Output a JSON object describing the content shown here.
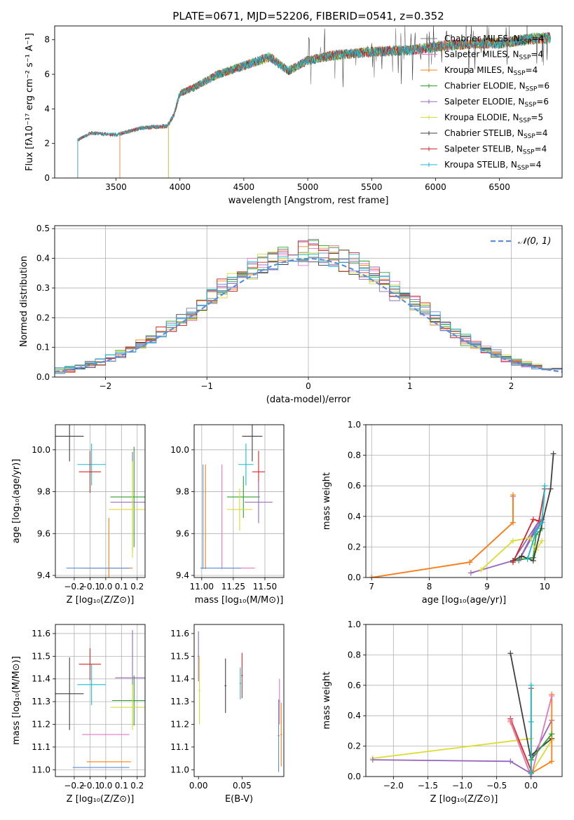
{
  "figure": {
    "title": "PLATE=0671, MJD=52206, FIBERID=0541, z=0.352"
  },
  "chart_data": [
    {
      "type": "line",
      "id": "spectrum",
      "xlabel": "wavelength [Angstrom, rest frame]",
      "ylabel": "Flux [fλ10⁻¹⁷ erg cm⁻² s⁻¹ A⁻¹]",
      "xlim": [
        3020,
        6990
      ],
      "ylim": [
        0,
        8.8
      ],
      "xticks": [
        3500,
        4000,
        4500,
        5000,
        5500,
        6000,
        6500
      ],
      "yticks": [
        0,
        2,
        4,
        6,
        8
      ],
      "grid": false,
      "legend_position": "top-right",
      "data_anchor_wavelength": [
        3200,
        3300,
        3500,
        3700,
        3900,
        3950,
        4000,
        4100,
        4300,
        4500,
        4700,
        4850,
        5000,
        5200,
        5500,
        5800,
        6000,
        6300,
        6500,
        6800
      ],
      "data_anchor_flux": [
        2.2,
        2.6,
        2.5,
        2.9,
        3.0,
        3.6,
        4.9,
        5.2,
        6.0,
        6.5,
        7.0,
        6.2,
        6.8,
        7.1,
        7.3,
        7.4,
        7.6,
        7.8,
        7.8,
        8.1
      ],
      "series": [
        {
          "name": "Chabrier MILES, N_SSP=4",
          "color": "#808080",
          "start": 3200
        },
        {
          "name": "Salpeter MILES, N_SSP=4",
          "color": "#e377c2",
          "start": 3530
        },
        {
          "name": "Kroupa MILES, N_SSP=4",
          "color": "#ff7f0e",
          "start": 3530
        },
        {
          "name": "Chabrier ELODIE, N_SSP=6",
          "color": "#2ca02c",
          "start": 3910
        },
        {
          "name": "Salpeter ELODIE, N_SSP=6",
          "color": "#9467bd",
          "start": 3910
        },
        {
          "name": "Kroupa ELODIE, N_SSP=5",
          "color": "#dbdb30",
          "start": 3910
        },
        {
          "name": "Chabrier STELIB, N_SSP=4",
          "color": "#404040",
          "start": 3200
        },
        {
          "name": "Salpeter STELIB, N_SSP=4",
          "color": "#d62728",
          "start": 3200
        },
        {
          "name": "Kroupa STELIB, N_SSP=4",
          "color": "#17becf",
          "start": 3200
        }
      ]
    },
    {
      "type": "line",
      "id": "residuals",
      "xlabel": "(data-model)/error",
      "ylabel": "Normed distribution",
      "xlim": [
        -2.5,
        2.5
      ],
      "ylim": [
        0,
        0.51
      ],
      "xticks": [
        -2,
        -1,
        0,
        1,
        2
      ],
      "yticks": [
        0.0,
        0.1,
        0.2,
        0.3,
        0.4,
        0.5
      ],
      "grid": true,
      "legend_position": "top-right",
      "reference_curve": {
        "name": "𝒩(0, 1)",
        "color": "#5b8fd9",
        "style": "dashed",
        "mean": 0,
        "sigma": 1
      },
      "bin_edges": [
        -2.5,
        -2.4,
        -2.3,
        -2.2,
        -2.1,
        -2.0,
        -1.9,
        -1.8,
        -1.7,
        -1.6,
        -1.5,
        -1.4,
        -1.3,
        -1.2,
        -1.1,
        -1.0,
        -0.9,
        -0.8,
        -0.7,
        -0.6,
        -0.5,
        -0.4,
        -0.3,
        -0.2,
        -0.1,
        0.0,
        0.1,
        0.2,
        0.3,
        0.4,
        0.5,
        0.6,
        0.7,
        0.8,
        0.9,
        1.0,
        1.1,
        1.2,
        1.3,
        1.4,
        1.5,
        1.6,
        1.7,
        1.8,
        1.9,
        2.0,
        2.1,
        2.2,
        2.3,
        2.4,
        2.5
      ],
      "series_colors": [
        "#808080",
        "#e377c2",
        "#ff7f0e",
        "#2ca02c",
        "#9467bd",
        "#dbdb30",
        "#404040",
        "#d62728",
        "#17becf",
        "#5b8fd9"
      ]
    },
    {
      "type": "scatter",
      "id": "age-vs-Z",
      "xlabel": "Z [log₁₀(Z/Z⊙)]",
      "ylabel": "age  [log₁₀(age/yr)]",
      "xlim": [
        -0.32,
        0.25
      ],
      "ylim": [
        9.39,
        10.12
      ],
      "xticks": [
        -0.2,
        -0.1,
        0.0,
        0.1,
        0.2
      ],
      "yticks": [
        9.4,
        9.6,
        9.8,
        10.0
      ],
      "grid": true,
      "points": [
        {
          "color": "#404040",
          "x": -0.23,
          "xerr": 0.09,
          "y": 10.065,
          "yerr": 0.12
        },
        {
          "color": "#17becf",
          "x": -0.09,
          "xerr": 0.09,
          "y": 9.93,
          "yerr": 0.1
        },
        {
          "color": "#d62728",
          "x": -0.1,
          "xerr": 0.07,
          "y": 9.895,
          "yerr": 0.1
        },
        {
          "color": "#2ca02c",
          "x": 0.18,
          "xerr": 0.15,
          "y": 9.775,
          "yerr": 0.24
        },
        {
          "color": "#9467bd",
          "x": 0.17,
          "xerr": 0.14,
          "y": 9.75,
          "yerr": 0.24
        },
        {
          "color": "#dbdb30",
          "x": 0.17,
          "xerr": 0.15,
          "y": 9.715,
          "yerr": 0.23
        },
        {
          "color": "#ff7f0e",
          "x": 0.02,
          "xerr": 0.15,
          "y": 9.435,
          "yerr": 0.24
        },
        {
          "color": "#e377c2",
          "x": 0.0,
          "xerr": 0.15,
          "y": 9.435,
          "yerr": 0.001
        },
        {
          "color": "#5b8fd9",
          "x": -0.05,
          "xerr": 0.2,
          "y": 9.435,
          "yerr": 0.001
        }
      ]
    },
    {
      "type": "scatter",
      "id": "age-vs-mass",
      "xlabel": "mass [log₁₀(M/M⊙)]",
      "ylabel": "",
      "xlim": [
        10.94,
        11.65
      ],
      "ylim": [
        9.39,
        10.12
      ],
      "xticks": [
        11.0,
        11.25,
        11.5
      ],
      "yticks": [
        9.4,
        9.6,
        9.8,
        10.0
      ],
      "grid": true,
      "points": [
        {
          "color": "#404040",
          "x": 11.4,
          "xerr": 0.08,
          "y": 10.065,
          "yerr": 0.12
        },
        {
          "color": "#17becf",
          "x": 11.35,
          "xerr": 0.06,
          "y": 9.93,
          "yerr": 0.1
        },
        {
          "color": "#d62728",
          "x": 11.45,
          "xerr": 0.05,
          "y": 9.895,
          "yerr": 0.1
        },
        {
          "color": "#2ca02c",
          "x": 11.33,
          "xerr": 0.13,
          "y": 9.775,
          "yerr": 0.1
        },
        {
          "color": "#9467bd",
          "x": 11.45,
          "xerr": 0.11,
          "y": 9.75,
          "yerr": 0.1
        },
        {
          "color": "#dbdb30",
          "x": 11.3,
          "xerr": 0.1,
          "y": 9.715,
          "yerr": 0.1
        },
        {
          "color": "#ff7f0e",
          "x": 11.03,
          "xerr": 0.001,
          "y": 9.68,
          "yerr": 0.25
        },
        {
          "color": "#e377c2",
          "x": 11.16,
          "xerr": 0.001,
          "y": 9.68,
          "yerr": 0.25
        },
        {
          "color": "#5b8fd9",
          "x": 11.01,
          "xerr": 0.001,
          "y": 9.68,
          "yerr": 0.25
        },
        {
          "color": "#e377c2",
          "x": 11.3,
          "xerr": 0.12,
          "y": 9.435,
          "yerr": 0.001
        },
        {
          "color": "#5b8fd9",
          "x": 11.15,
          "xerr": 0.16,
          "y": 9.435,
          "yerr": 0.001
        }
      ]
    },
    {
      "type": "line",
      "id": "weight-vs-age",
      "xlabel": "age  [log₁₀(age/yr)]",
      "ylabel": "mass weight",
      "xlim": [
        6.9,
        10.3
      ],
      "ylim": [
        0,
        1.0
      ],
      "xticks": [
        7,
        8,
        9,
        10
      ],
      "yticks": [
        0.0,
        0.2,
        0.4,
        0.6,
        0.8,
        1.0
      ],
      "grid": true,
      "series": [
        {
          "color": "#e377c2",
          "x": [
            7.0,
            8.7,
            9.45,
            9.45
          ],
          "y": [
            0.0,
            0.1,
            0.36,
            0.53
          ]
        },
        {
          "color": "#ff7f0e",
          "x": [
            7.0,
            8.7,
            9.45,
            9.45
          ],
          "y": [
            0.0,
            0.1,
            0.36,
            0.54
          ]
        },
        {
          "color": "#9467bd",
          "x": [
            8.72,
            9.45,
            9.9,
            9.55,
            9.95
          ],
          "y": [
            0.03,
            0.11,
            0.37,
            0.11,
            0.38
          ]
        },
        {
          "color": "#2ca02c",
          "x": [
            9.45,
            9.8,
            9.85,
            9.95
          ],
          "y": [
            0.11,
            0.13,
            0.28,
            0.32
          ]
        },
        {
          "color": "#dbdb30",
          "x": [
            8.9,
            9.45,
            9.75,
            9.85,
            9.95
          ],
          "y": [
            0.05,
            0.24,
            0.26,
            0.18,
            0.24
          ]
        },
        {
          "color": "#404040",
          "x": [
            9.45,
            9.6,
            9.8,
            10.1,
            10.15
          ],
          "y": [
            0.11,
            0.14,
            0.11,
            0.58,
            0.81
          ]
        },
        {
          "color": "#d62728",
          "x": [
            9.45,
            9.8,
            9.9,
            10.0
          ],
          "y": [
            0.1,
            0.38,
            0.37,
            0.58
          ]
        },
        {
          "color": "#17becf",
          "x": [
            9.7,
            9.85,
            9.95,
            10.0
          ],
          "y": [
            0.12,
            0.3,
            0.36,
            0.6
          ]
        }
      ]
    },
    {
      "type": "scatter",
      "id": "mass-vs-Z",
      "xlabel": "Z [log₁₀(Z/Z⊙)]",
      "ylabel": "mass [log₁₀(M/M⊙)]",
      "xlim": [
        -0.32,
        0.25
      ],
      "ylim": [
        10.97,
        11.64
      ],
      "xticks": [
        -0.2,
        -0.1,
        0.0,
        0.1,
        0.2
      ],
      "yticks": [
        11.0,
        11.1,
        11.2,
        11.3,
        11.4,
        11.5,
        11.6
      ],
      "grid": true,
      "points": [
        {
          "color": "#404040",
          "x": -0.23,
          "xerr": 0.09,
          "y": 11.335,
          "yerr": 0.16
        },
        {
          "color": "#d62728",
          "x": -0.1,
          "xerr": 0.07,
          "y": 11.465,
          "yerr": 0.07
        },
        {
          "color": "#17becf",
          "x": -0.09,
          "xerr": 0.09,
          "y": 11.375,
          "yerr": 0.09
        },
        {
          "color": "#9467bd",
          "x": 0.17,
          "xerr": 0.11,
          "y": 11.405,
          "yerr": 0.21
        },
        {
          "color": "#2ca02c",
          "x": 0.18,
          "xerr": 0.14,
          "y": 11.305,
          "yerr": 0.11
        },
        {
          "color": "#dbdb30",
          "x": 0.17,
          "xerr": 0.14,
          "y": 11.275,
          "yerr": 0.1
        },
        {
          "color": "#e377c2",
          "x": 0.0,
          "xerr": 0.15,
          "y": 11.155,
          "yerr": 0.001
        },
        {
          "color": "#ff7f0e",
          "x": 0.02,
          "xerr": 0.14,
          "y": 11.035,
          "yerr": 0.001
        },
        {
          "color": "#5b8fd9",
          "x": -0.03,
          "xerr": 0.18,
          "y": 11.01,
          "yerr": 0.001
        }
      ]
    },
    {
      "type": "scatter",
      "id": "mass-vs-EBV",
      "xlabel": "E(B-V)",
      "ylabel": "",
      "xlim": [
        -0.005,
        0.098
      ],
      "ylim": [
        10.97,
        11.64
      ],
      "xticks": [
        0.0,
        0.05
      ],
      "yticks": [
        11.0,
        11.1,
        11.2,
        11.3,
        11.4,
        11.5,
        11.6
      ],
      "grid": false,
      "points": [
        {
          "color": "#9467bd",
          "x": 0.0,
          "xerr": 0.001,
          "y": 11.5,
          "yerr": 0.11
        },
        {
          "color": "#dbdb30",
          "x": 0.001,
          "xerr": 0.001,
          "y": 11.35,
          "yerr": 0.15
        },
        {
          "color": "#404040",
          "x": 0.031,
          "xerr": 0.001,
          "y": 11.37,
          "yerr": 0.12
        },
        {
          "color": "#d62728",
          "x": 0.05,
          "xerr": 0.001,
          "y": 11.415,
          "yerr": 0.1
        },
        {
          "color": "#17becf",
          "x": 0.048,
          "xerr": 0.001,
          "y": 11.38,
          "yerr": 0.07
        },
        {
          "color": "#e377c2",
          "x": 0.093,
          "xerr": 0.001,
          "y": 11.3,
          "yerr": 0.1
        },
        {
          "color": "#ff7f0e",
          "x": 0.095,
          "xerr": 0.001,
          "y": 11.155,
          "yerr": 0.14
        },
        {
          "color": "#5b8fd9",
          "x": 0.092,
          "xerr": 0.001,
          "y": 11.15,
          "yerr": 0.16
        }
      ]
    },
    {
      "type": "line",
      "id": "weight-vs-Z",
      "xlabel": "Z [log₁₀(Z/Z⊙)]",
      "ylabel": "mass weight",
      "xlim": [
        -2.4,
        0.45
      ],
      "ylim": [
        0,
        1.0
      ],
      "xticks": [
        -2.0,
        -1.5,
        -1.0,
        -0.5,
        0.0
      ],
      "yticks": [
        0.0,
        0.2,
        0.4,
        0.6,
        0.8,
        1.0
      ],
      "grid": true,
      "series": [
        {
          "color": "#dbdb30",
          "x": [
            -2.3,
            0.0,
            0.0,
            0.3,
            0.3
          ],
          "y": [
            0.12,
            0.25,
            0.02,
            0.24,
            0.28
          ]
        },
        {
          "color": "#9467bd",
          "x": [
            -2.3,
            -0.3,
            0.0,
            0.0,
            0.3
          ],
          "y": [
            0.11,
            0.1,
            0.02,
            0.11,
            0.37
          ]
        },
        {
          "color": "#404040",
          "x": [
            -0.3,
            0.0,
            0.0,
            0.3
          ],
          "y": [
            0.81,
            0.11,
            0.14,
            0.25
          ]
        },
        {
          "color": "#d62728",
          "x": [
            -0.3,
            0.0,
            0.0
          ],
          "y": [
            0.38,
            0.04,
            0.58
          ]
        },
        {
          "color": "#ff7f0e",
          "x": [
            -0.3,
            0.0,
            0.0,
            0.3,
            0.3
          ],
          "y": [
            0.36,
            0.0,
            0.02,
            0.1,
            0.54
          ]
        },
        {
          "color": "#e377c2",
          "x": [
            -0.3,
            0.0,
            0.3
          ],
          "y": [
            0.37,
            0.0,
            0.53
          ]
        },
        {
          "color": "#2ca02c",
          "x": [
            0.0,
            0.0,
            0.3
          ],
          "y": [
            0.03,
            0.11,
            0.28
          ]
        },
        {
          "color": "#17becf",
          "x": [
            0.0,
            0.0,
            0.0
          ],
          "y": [
            0.36,
            0.6,
            0.02
          ]
        }
      ]
    }
  ]
}
